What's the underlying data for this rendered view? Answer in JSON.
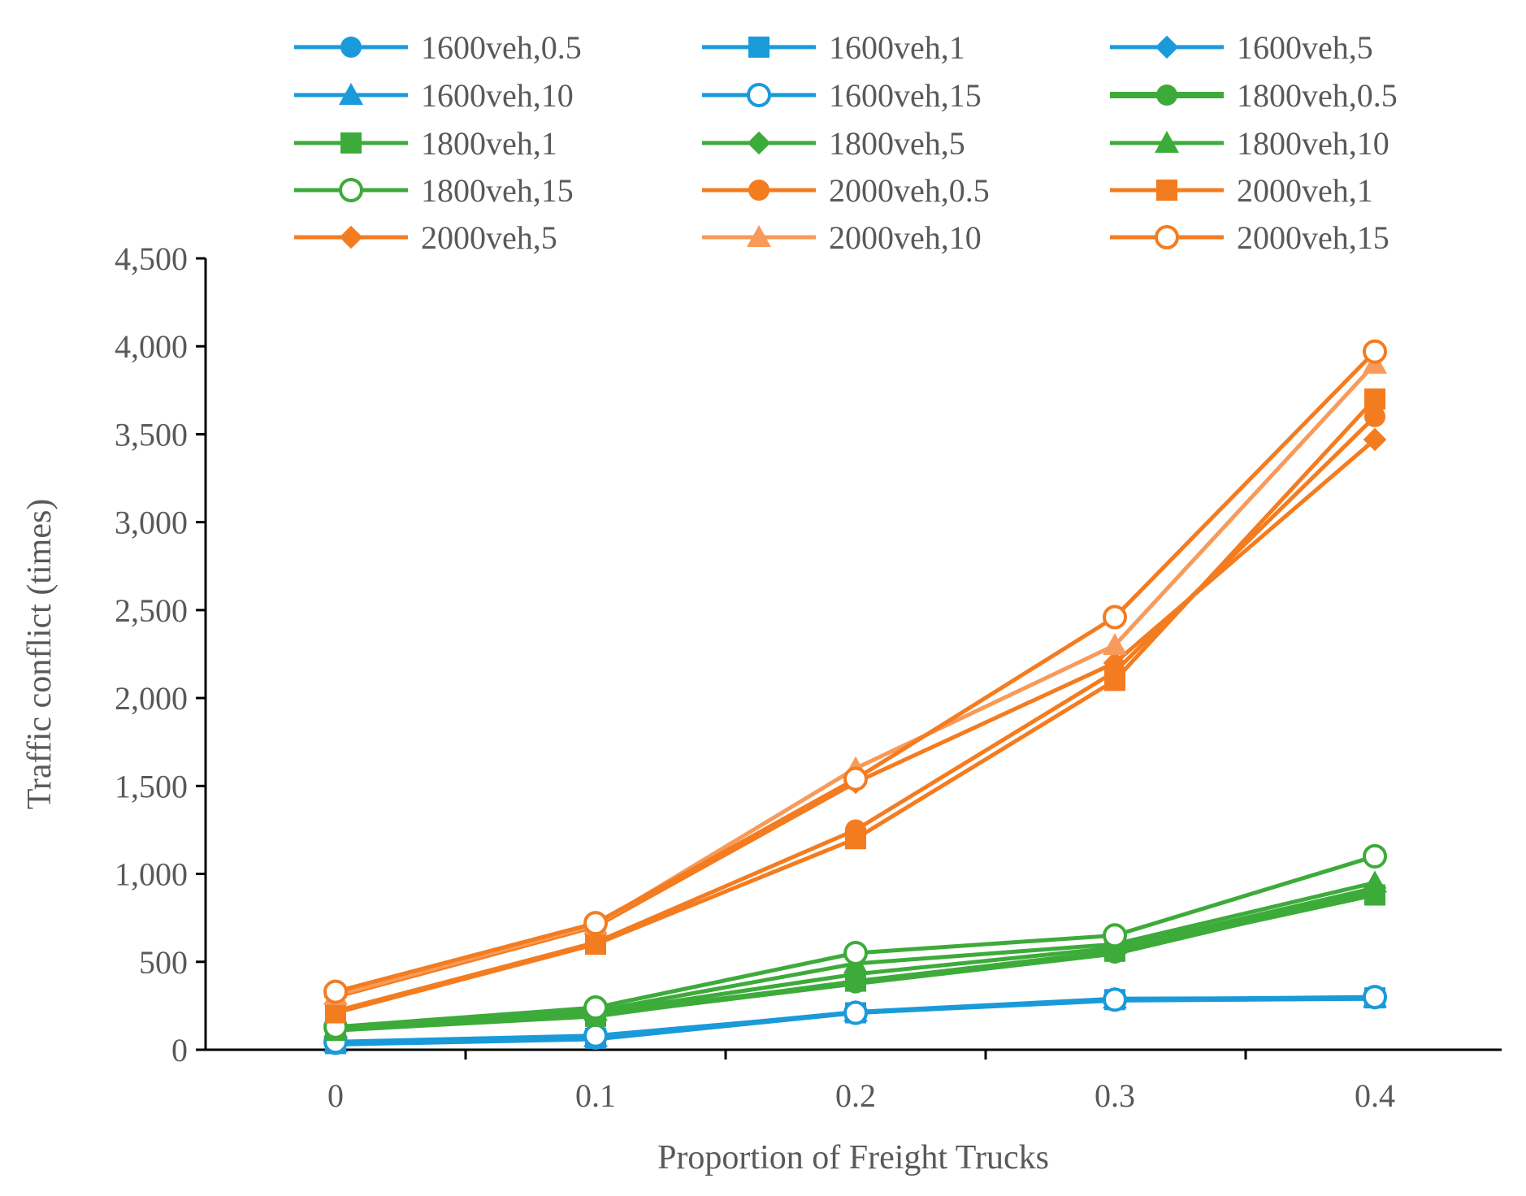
{
  "chart_data": {
    "type": "line",
    "title": "",
    "xlabel": "Proportion of Freight  Trucks",
    "ylabel": "Traffic conflict (times)",
    "x": [
      0,
      0.1,
      0.2,
      0.3,
      0.4
    ],
    "x_tick_labels": [
      "0",
      "0.1",
      "0.2",
      "0.3",
      "0.4"
    ],
    "ylim": [
      0,
      4500
    ],
    "y_ticks": [
      0,
      500,
      1000,
      1500,
      2000,
      2500,
      3000,
      3500,
      4000,
      4500
    ],
    "y_tick_labels": [
      "0",
      "500",
      "1,000",
      "1,500",
      "2,000",
      "2,500",
      "3,000",
      "3,500",
      "4,000",
      "4,500"
    ],
    "grid": false,
    "legend_position": "top",
    "series": [
      {
        "name": "1600veh,0.5",
        "color": "#1a9ad9",
        "marker": "circle-filled",
        "values": [
          30,
          60,
          210,
          280,
          290
        ]
      },
      {
        "name": "1600veh,1",
        "color": "#1a9ad9",
        "marker": "square",
        "values": [
          35,
          65,
          210,
          285,
          295
        ]
      },
      {
        "name": "1600veh,5",
        "color": "#1a9ad9",
        "marker": "diamond",
        "values": [
          35,
          70,
          210,
          285,
          295
        ]
      },
      {
        "name": "1600veh,10",
        "color": "#1a9ad9",
        "marker": "triangle",
        "values": [
          40,
          70,
          215,
          290,
          295
        ]
      },
      {
        "name": "1600veh,15",
        "color": "#1a9ad9",
        "marker": "circle-open",
        "values": [
          45,
          80,
          210,
          285,
          300
        ]
      },
      {
        "name": "1800veh,0.5",
        "color": "#3dab3a",
        "marker": "circle-filled",
        "values": [
          120,
          200,
          380,
          550,
          900
        ]
      },
      {
        "name": "1800veh,1",
        "color": "#3dab3a",
        "marker": "square",
        "values": [
          110,
          190,
          390,
          560,
          880
        ]
      },
      {
        "name": "1800veh,5",
        "color": "#3dab3a",
        "marker": "diamond",
        "values": [
          115,
          210,
          430,
          580,
          920
        ]
      },
      {
        "name": "1800veh,10",
        "color": "#3dab3a",
        "marker": "triangle",
        "values": [
          125,
          220,
          490,
          600,
          950
        ]
      },
      {
        "name": "1800veh,15",
        "color": "#3dab3a",
        "marker": "circle-open",
        "values": [
          130,
          240,
          550,
          650,
          1100
        ]
      },
      {
        "name": "2000veh,0.5",
        "color": "#f47c20",
        "marker": "circle-filled",
        "values": [
          220,
          610,
          1250,
          2150,
          3600
        ]
      },
      {
        "name": "2000veh,1",
        "color": "#f47c20",
        "marker": "square",
        "values": [
          210,
          600,
          1200,
          2100,
          3700
        ]
      },
      {
        "name": "2000veh,5",
        "color": "#f47c20",
        "marker": "diamond",
        "values": [
          300,
          700,
          1520,
          2200,
          3470
        ]
      },
      {
        "name": "2000veh,10",
        "color": "#f79a5a",
        "marker": "triangle",
        "values": [
          310,
          710,
          1600,
          2300,
          3900
        ]
      },
      {
        "name": "2000veh,15",
        "color": "#f47c20",
        "marker": "circle-open",
        "values": [
          330,
          720,
          1540,
          2460,
          3970
        ]
      }
    ]
  }
}
